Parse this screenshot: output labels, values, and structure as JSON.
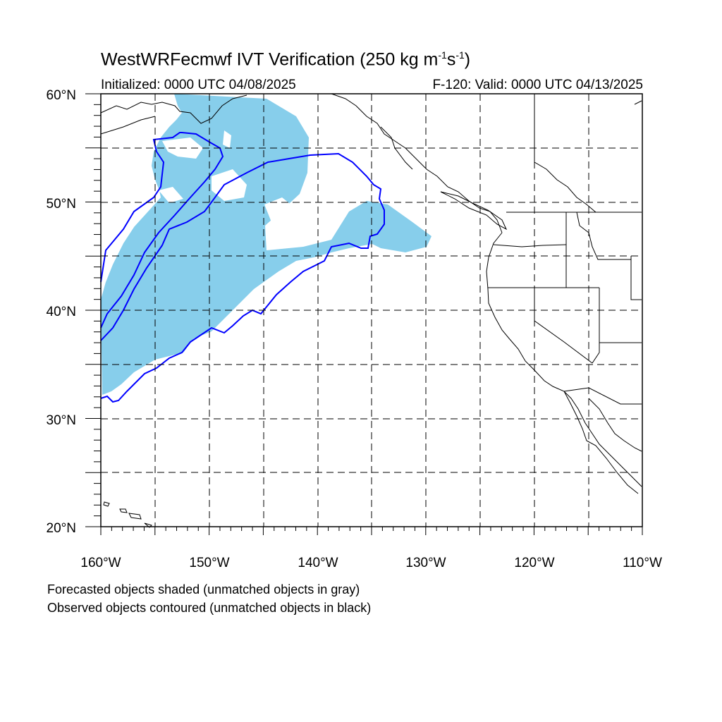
{
  "title": {
    "main": "WestWRFecmwf IVT Verification (250 kg m",
    "sup1": "-1",
    "mid": "s",
    "sup2": "-1",
    "end": ")"
  },
  "initialized": "Initialized: 0000 UTC 04/08/2025",
  "valid": "F-120: Valid: 0000 UTC 04/13/2025",
  "lat_labels": [
    "60°N",
    "50°N",
    "40°N",
    "30°N",
    "20°N"
  ],
  "lon_labels": [
    "160°W",
    "150°W",
    "140°W",
    "130°W",
    "120°W",
    "110°W"
  ],
  "notes": [
    "Forecasted objects shaded (unmatched objects in gray)",
    "Observed objects contoured (unmatched objects in black)"
  ],
  "colors": {
    "forecast_fill": "#87ceeb",
    "observed_contour": "#0000ff",
    "coastline": "#000000",
    "grid": "#000000"
  },
  "map_extent": {
    "lon": [
      -160,
      -110
    ],
    "lat": [
      20,
      60
    ]
  }
}
